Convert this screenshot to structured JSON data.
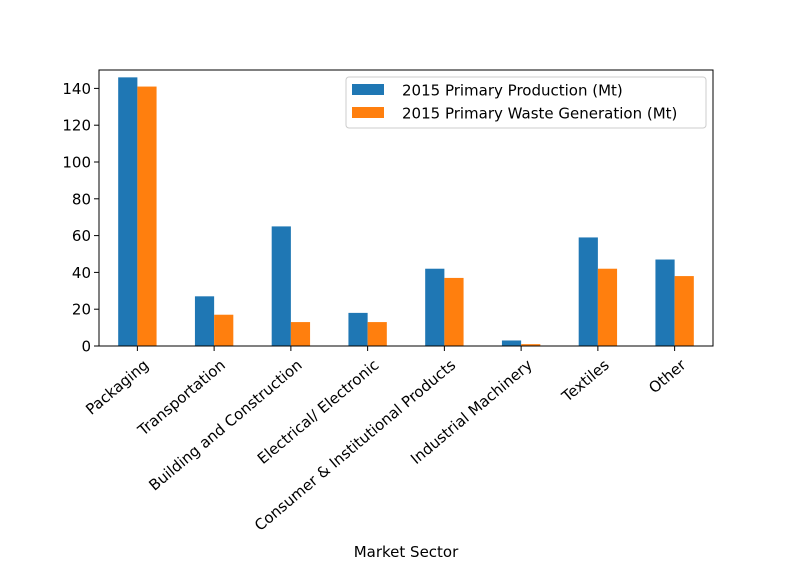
{
  "chart_data": {
    "type": "bar",
    "categories": [
      "Packaging",
      "Transportation",
      "Building and Construction",
      "Electrical/ Electronic",
      "Consumer & Institutional Products",
      "Industrial Machinery",
      "Textiles",
      "Other"
    ],
    "series": [
      {
        "name": "2015 Primary Production (Mt)",
        "values": [
          146,
          27,
          65,
          18,
          42,
          3,
          59,
          47
        ],
        "color": "#1f77b4"
      },
      {
        "name": "2015 Primary Waste Generation (Mt)",
        "values": [
          141,
          17,
          13,
          13,
          37,
          1,
          42,
          38
        ],
        "color": "#ff7f0e"
      }
    ],
    "title": "",
    "xlabel": "Market Sector",
    "ylabel": "",
    "ylim": [
      0,
      150
    ],
    "yticks": [
      0,
      20,
      40,
      60,
      80,
      100,
      120,
      140
    ],
    "grid": false,
    "legend_position": "top-right"
  }
}
